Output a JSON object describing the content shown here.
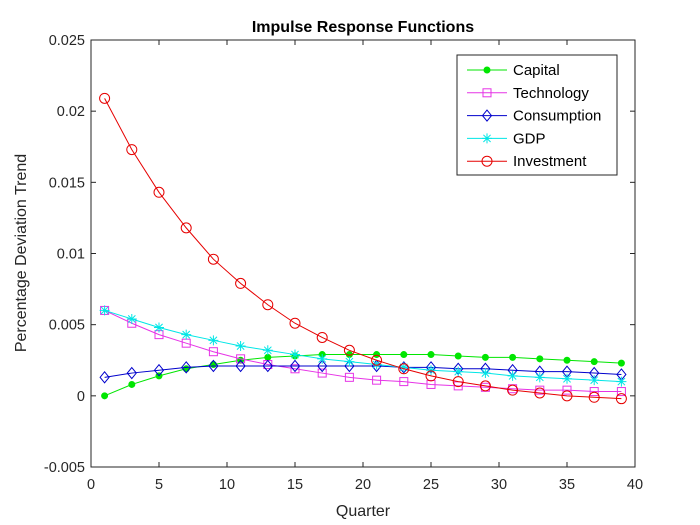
{
  "chart_data": {
    "type": "line",
    "title": "Impulse Response Functions",
    "xlabel": "Quarter",
    "ylabel": "Percentage Deviation Trend",
    "xlim": [
      0,
      40
    ],
    "ylim": [
      -0.005,
      0.025
    ],
    "xticks": [
      0,
      5,
      10,
      15,
      20,
      25,
      30,
      35,
      40
    ],
    "xtick_labels": [
      "0",
      "5",
      "10",
      "15",
      "20",
      "25",
      "30",
      "35",
      "40"
    ],
    "yticks": [
      -0.005,
      0,
      0.005,
      0.01,
      0.015,
      0.02,
      0.025
    ],
    "ytick_labels": [
      "-0.005",
      "0",
      "0.005",
      "0.01",
      "0.015",
      "0.02",
      "0.025"
    ],
    "grid": false,
    "legend_position": "top-right",
    "x": [
      1,
      3,
      5,
      7,
      9,
      11,
      13,
      15,
      17,
      19,
      21,
      23,
      25,
      27,
      29,
      31,
      33,
      35,
      37,
      39
    ],
    "series": [
      {
        "name": "Capital",
        "color": "#00e600",
        "marker": "dot",
        "values": [
          0.0,
          0.0008,
          0.0014,
          0.0019,
          0.0022,
          0.0025,
          0.0027,
          0.0028,
          0.0029,
          0.0029,
          0.0029,
          0.0029,
          0.0029,
          0.0028,
          0.0027,
          0.0027,
          0.0026,
          0.0025,
          0.0024,
          0.0023
        ]
      },
      {
        "name": "Technology",
        "color": "#e633e6",
        "marker": "square",
        "values": [
          0.006,
          0.0051,
          0.0043,
          0.0037,
          0.0031,
          0.0026,
          0.0022,
          0.0019,
          0.0016,
          0.0013,
          0.0011,
          0.001,
          0.0008,
          0.0007,
          0.0006,
          0.0005,
          0.0004,
          0.0004,
          0.0003,
          0.0003
        ]
      },
      {
        "name": "Consumption",
        "color": "#0000cc",
        "marker": "diamond",
        "values": [
          0.0013,
          0.0016,
          0.0018,
          0.002,
          0.0021,
          0.0021,
          0.0021,
          0.0021,
          0.0021,
          0.0021,
          0.0021,
          0.002,
          0.002,
          0.0019,
          0.0019,
          0.0018,
          0.0017,
          0.0017,
          0.0016,
          0.0015
        ]
      },
      {
        "name": "GDP",
        "color": "#00e6e6",
        "marker": "star",
        "values": [
          0.006,
          0.0054,
          0.0048,
          0.0043,
          0.0039,
          0.0035,
          0.0032,
          0.0029,
          0.0026,
          0.0024,
          0.0022,
          0.002,
          0.0018,
          0.0017,
          0.0016,
          0.0014,
          0.0013,
          0.0012,
          0.0011,
          0.001
        ]
      },
      {
        "name": "Investment",
        "color": "#e60000",
        "marker": "circle",
        "values": [
          0.0209,
          0.0173,
          0.0143,
          0.0118,
          0.0096,
          0.0079,
          0.0064,
          0.0051,
          0.0041,
          0.0032,
          0.0025,
          0.0019,
          0.0014,
          0.001,
          0.0007,
          0.0004,
          0.0002,
          0.0,
          -0.0001,
          -0.0002
        ]
      }
    ]
  }
}
